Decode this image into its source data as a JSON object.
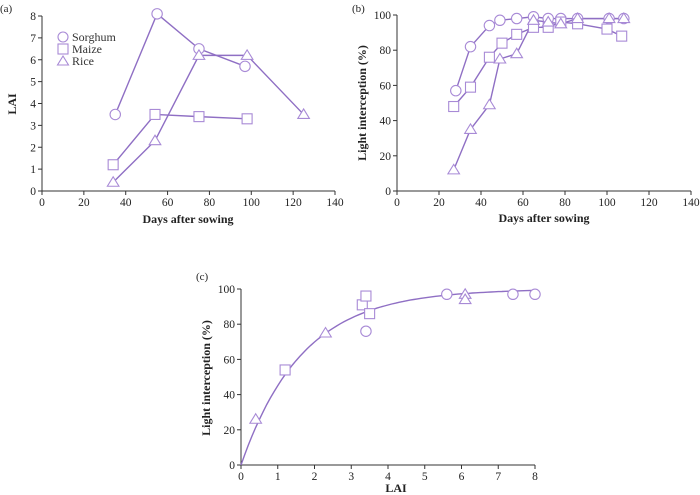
{
  "colors": {
    "series": "#8f6fc4",
    "marker": "#a88ad6",
    "axis": "#333333"
  },
  "chart_data": [
    {
      "id": "a",
      "panel_label": "(a)",
      "type": "line",
      "title": "",
      "xlabel": "Days after sowing",
      "ylabel": "LAI",
      "xlim": [
        0,
        140
      ],
      "ylim": [
        0,
        8
      ],
      "xticks": [
        0,
        20,
        40,
        60,
        80,
        100,
        120,
        140
      ],
      "yticks": [
        0,
        1,
        2,
        3,
        4,
        5,
        6,
        7,
        8
      ],
      "grid": false,
      "legend": {
        "placement": "top-left",
        "entries": [
          {
            "name": "Sorghum",
            "marker": "circle"
          },
          {
            "name": "Maize",
            "marker": "square"
          },
          {
            "name": "Rice",
            "marker": "triangle"
          }
        ]
      },
      "series": [
        {
          "name": "Sorghum",
          "marker": "circle",
          "x": [
            35,
            55,
            75,
            97
          ],
          "y": [
            3.5,
            8.1,
            6.5,
            5.7
          ]
        },
        {
          "name": "Maize",
          "marker": "square",
          "x": [
            34,
            54,
            75,
            98
          ],
          "y": [
            1.2,
            3.5,
            3.4,
            3.3
          ]
        },
        {
          "name": "Rice",
          "marker": "triangle",
          "x": [
            34,
            54,
            75,
            98,
            125
          ],
          "y": [
            0.4,
            2.3,
            6.2,
            6.2,
            3.5
          ]
        }
      ]
    },
    {
      "id": "b",
      "panel_label": "(b)",
      "type": "line",
      "title": "",
      "xlabel": "Days after sowing",
      "ylabel": "Light interception (%)",
      "xlim": [
        0,
        140
      ],
      "ylim": [
        0,
        100
      ],
      "xticks": [
        0,
        20,
        40,
        60,
        80,
        100,
        120,
        140
      ],
      "yticks": [
        0,
        20,
        40,
        60,
        80,
        100
      ],
      "grid": false,
      "series": [
        {
          "name": "Sorghum",
          "marker": "circle",
          "x": [
            28,
            35,
            44,
            49,
            57,
            65,
            72,
            78,
            86,
            101,
            108
          ],
          "y": [
            57,
            82,
            94,
            97,
            98,
            99,
            98,
            98,
            98,
            98,
            98
          ]
        },
        {
          "name": "Maize",
          "marker": "square",
          "x": [
            27,
            35,
            44,
            50,
            57,
            65,
            72,
            78,
            86,
            100,
            107
          ],
          "y": [
            48,
            59,
            76,
            84,
            89,
            93,
            93,
            96,
            95,
            92,
            88
          ]
        },
        {
          "name": "Rice",
          "marker": "triangle",
          "x": [
            27,
            35,
            44,
            49,
            57,
            65,
            72,
            78,
            86,
            101,
            108
          ],
          "y": [
            12,
            35,
            49,
            75,
            78,
            97,
            96,
            95,
            98,
            98,
            98
          ]
        }
      ]
    },
    {
      "id": "c",
      "panel_label": "(c)",
      "type": "scatter",
      "title": "",
      "xlabel": "LAI",
      "ylabel": "Light interception (%)",
      "xlim": [
        0,
        8
      ],
      "ylim": [
        0,
        100
      ],
      "xticks": [
        0,
        1,
        2,
        3,
        4,
        5,
        6,
        7,
        8
      ],
      "yticks": [
        0,
        20,
        40,
        60,
        80,
        100
      ],
      "grid": false,
      "fit": {
        "equation": "y = 100 * (1 - exp(-k * LAI))",
        "k": 0.6,
        "xrange": [
          0,
          8
        ]
      },
      "series": [
        {
          "name": "Sorghum",
          "marker": "circle",
          "x": [
            3.4,
            5.6,
            7.4,
            8.0
          ],
          "y": [
            76,
            97,
            97,
            97
          ]
        },
        {
          "name": "Maize",
          "marker": "square",
          "x": [
            1.2,
            3.3,
            3.4,
            3.5
          ],
          "y": [
            54,
            91,
            96,
            86
          ]
        },
        {
          "name": "Rice",
          "marker": "triangle",
          "x": [
            0.4,
            2.3,
            6.1,
            6.1
          ],
          "y": [
            26,
            75,
            97,
            94
          ]
        }
      ]
    }
  ]
}
